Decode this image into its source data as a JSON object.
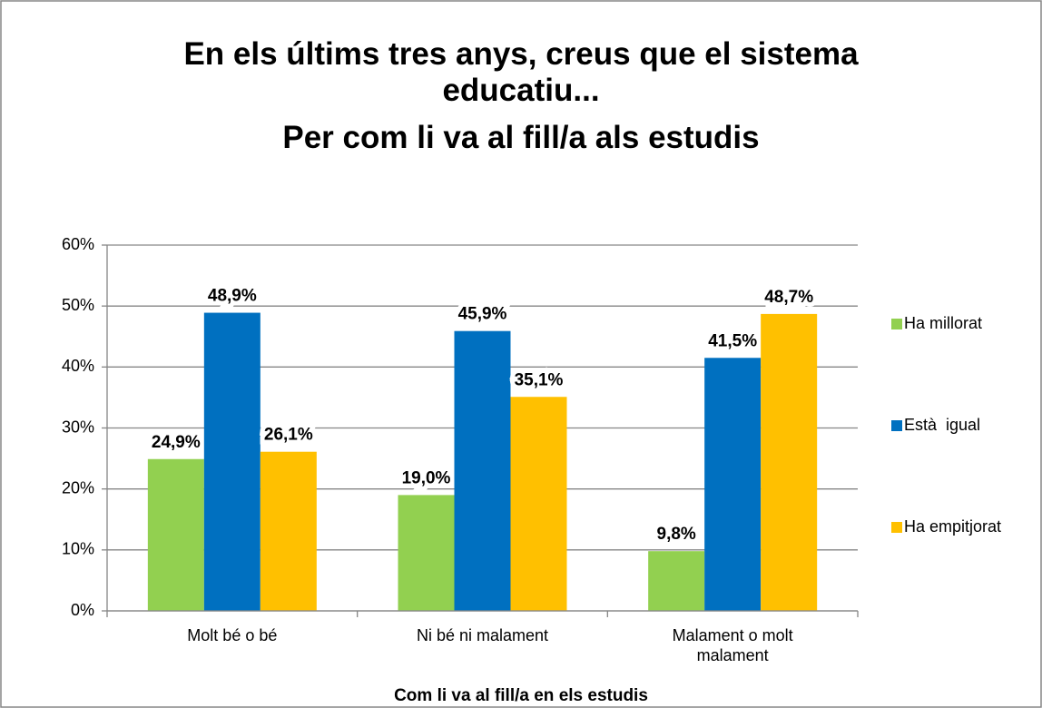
{
  "chart_data": {
    "type": "bar",
    "title": "En els últims tres anys, creus que el sistema educatiu...",
    "subtitle": "Per com li va al fill/a als estudis",
    "x_label": "Com li va al fill/a en els estudis",
    "categories": [
      "Molt bé o bé",
      "Ni bé ni malament",
      "Malament o molt malament"
    ],
    "series": [
      {
        "name": "Ha millorat",
        "color": "#92d050",
        "values": [
          24.9,
          19.0,
          9.8
        ],
        "value_labels": [
          "24,9%",
          "19,0%",
          "9,8%"
        ]
      },
      {
        "name": "Està  igual",
        "color": "#0070c0",
        "values": [
          48.9,
          45.9,
          41.5
        ],
        "value_labels": [
          "48,9%",
          "45,9%",
          "41,5%"
        ]
      },
      {
        "name": "Ha empitjorat",
        "color": "#ffc000",
        "values": [
          26.1,
          35.1,
          48.7
        ],
        "value_labels": [
          "26,1%",
          "35,1%",
          "48,7%"
        ]
      }
    ],
    "ylim": [
      0,
      60
    ],
    "yticks": [
      {
        "value": 0,
        "label": "0%"
      },
      {
        "value": 10,
        "label": "10%"
      },
      {
        "value": 20,
        "label": "20%"
      },
      {
        "value": 30,
        "label": "30%"
      },
      {
        "value": 40,
        "label": "40%"
      },
      {
        "value": 50,
        "label": "50%"
      },
      {
        "value": 60,
        "label": "60%"
      }
    ],
    "grid": true,
    "legend": "right"
  }
}
